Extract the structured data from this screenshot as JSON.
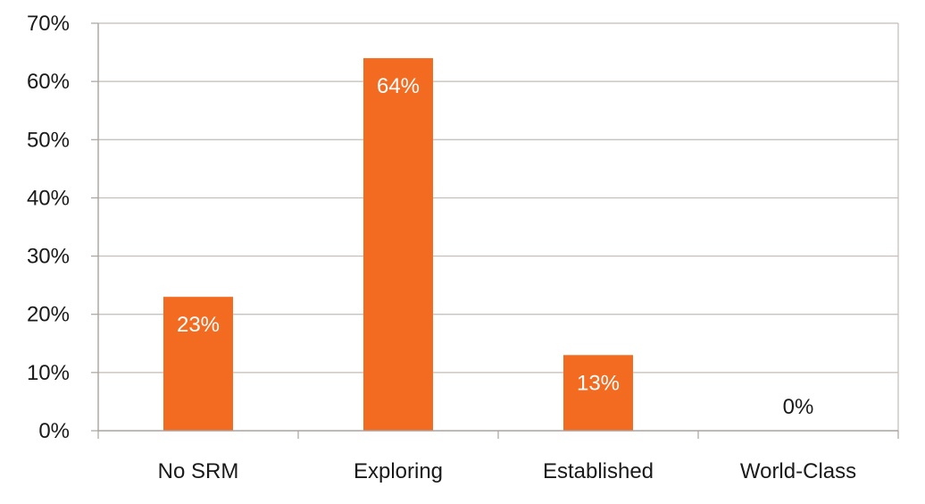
{
  "chart_data": {
    "type": "bar",
    "categories": [
      "No SRM",
      "Exploring",
      "Established",
      "World-Class"
    ],
    "values": [
      23,
      64,
      13,
      0
    ],
    "data_labels": [
      "23%",
      "64%",
      "13%",
      "0%"
    ],
    "y_ticks": [
      "0%",
      "10%",
      "20%",
      "30%",
      "40%",
      "50%",
      "60%",
      "70%"
    ],
    "ylim": [
      0,
      70
    ],
    "ytick_step": 10,
    "title": "",
    "xlabel": "",
    "ylabel": "",
    "grid": true,
    "legend": "none",
    "colors": {
      "bar": "#f26b21",
      "grid": "#c3bcb6",
      "axis": "#aaa39d",
      "label_inside": "#ffffff",
      "label_outside": "#1a1a1a"
    }
  }
}
